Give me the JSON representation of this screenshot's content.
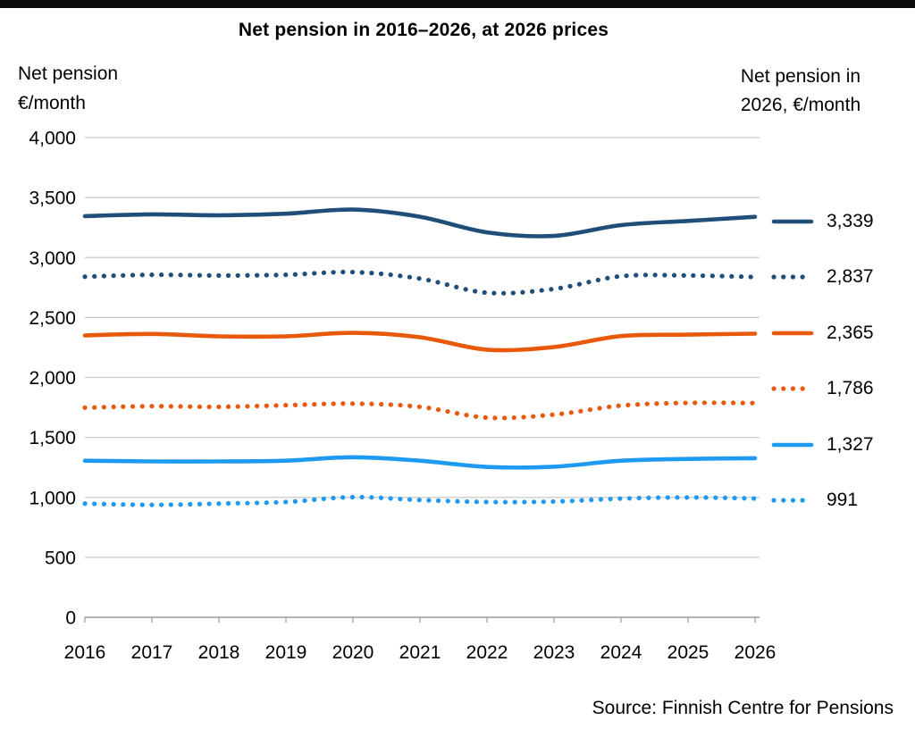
{
  "page": {
    "title": "Net pension in 2016–2026, at 2026 prices",
    "source": "Source: Finnish Centre for Pensions"
  },
  "headers": {
    "left_line1": "Net pension",
    "left_line2": "€/month",
    "right_line1": "Net pension in",
    "right_line2": "2026, €/month"
  },
  "legend": {
    "position": "right",
    "items": [
      {
        "value": "3,339"
      },
      {
        "value": "2,837"
      },
      {
        "value": "2,365"
      },
      {
        "value": "1,786"
      },
      {
        "value": "1,327"
      },
      {
        "value": "991"
      }
    ]
  },
  "colors": {
    "dark_blue": "#1F4E79",
    "orange": "#E9590C",
    "light_blue": "#1E9BF0",
    "gridline": "#C9C9C9",
    "axis": "#9B9B9B",
    "top_bar": "#0B0B0B",
    "text": "#000000"
  },
  "chart_data": {
    "type": "line",
    "title": "Net pension in 2016–2026, at 2026 prices",
    "xlabel": "",
    "ylabel": "Net pension €/month",
    "right_label": "Net pension in 2026, €/month",
    "x": [
      2016,
      2017,
      2018,
      2019,
      2020,
      2021,
      2022,
      2023,
      2024,
      2025,
      2026
    ],
    "ylim": [
      0,
      4000
    ],
    "ytick_step": 500,
    "grid": true,
    "legend_position": "right-of-line-ends",
    "series": [
      {
        "id": "dark-blue-solid",
        "style": "solid",
        "color": "#1F4E79",
        "end_label": "3,339",
        "values": [
          3345,
          3360,
          3352,
          3365,
          3400,
          3340,
          3210,
          3180,
          3270,
          3305,
          3339
        ]
      },
      {
        "id": "dark-blue-dotted",
        "style": "dotted",
        "color": "#1F4E79",
        "end_label": "2,837",
        "values": [
          2840,
          2856,
          2850,
          2856,
          2878,
          2824,
          2706,
          2738,
          2844,
          2850,
          2837
        ]
      },
      {
        "id": "orange-solid",
        "style": "solid",
        "color": "#E9590C",
        "end_label": "2,365",
        "values": [
          2350,
          2363,
          2343,
          2343,
          2372,
          2335,
          2232,
          2254,
          2345,
          2357,
          2365
        ]
      },
      {
        "id": "orange-dotted",
        "style": "dotted",
        "color": "#E9590C",
        "end_label": "1,786",
        "values": [
          1748,
          1760,
          1755,
          1768,
          1782,
          1755,
          1665,
          1690,
          1765,
          1788,
          1786
        ]
      },
      {
        "id": "light-blue-solid",
        "style": "solid",
        "color": "#1E9BF0",
        "end_label": "1,327",
        "values": [
          1306,
          1300,
          1300,
          1306,
          1335,
          1306,
          1254,
          1256,
          1306,
          1321,
          1327
        ]
      },
      {
        "id": "light-blue-dotted",
        "style": "dotted",
        "color": "#1E9BF0",
        "end_label": "991",
        "values": [
          948,
          938,
          948,
          962,
          1002,
          978,
          962,
          965,
          990,
          1000,
          991
        ]
      }
    ]
  }
}
